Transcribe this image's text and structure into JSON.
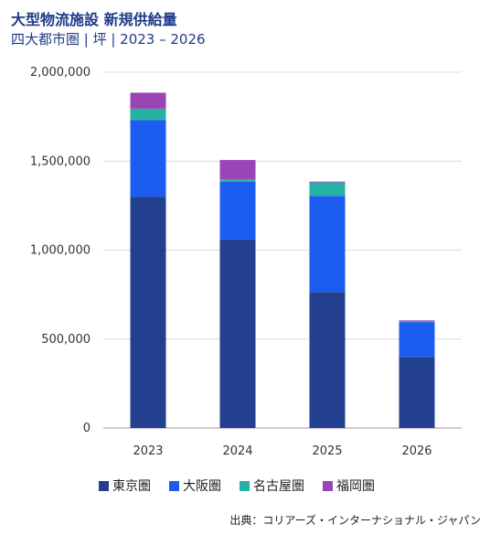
{
  "title": "大型物流施設 新規供給量",
  "subtitle": "四大都市圏 | 坪 | 2023 – 2026",
  "source": "出典：コリアーズ・インターナショナル・ジャパン",
  "colors": {
    "東京圏": "#22408f",
    "大阪圏": "#1d5cf0",
    "名古屋圏": "#24b3a2",
    "福岡圏": "#9a45b5"
  },
  "chart_data": {
    "type": "bar",
    "stacked": true,
    "categories": [
      "2023",
      "2024",
      "2025",
      "2026"
    ],
    "series": [
      {
        "name": "東京圏",
        "values": [
          1300000,
          1060000,
          765000,
          400000
        ]
      },
      {
        "name": "大阪圏",
        "values": [
          430000,
          325000,
          540000,
          195000
        ]
      },
      {
        "name": "名古屋圏",
        "values": [
          65000,
          12000,
          75000,
          3000
        ]
      },
      {
        "name": "福岡圏",
        "values": [
          90000,
          110000,
          5000,
          7000
        ]
      }
    ],
    "ylim": [
      0,
      2000000
    ],
    "yticks": [
      0,
      500000,
      1000000,
      1500000,
      2000000
    ],
    "ytick_labels": [
      "0",
      "500,000",
      "1,000,000",
      "1,500,000",
      "2,000,000"
    ],
    "grid": true,
    "legend": "bottom"
  }
}
